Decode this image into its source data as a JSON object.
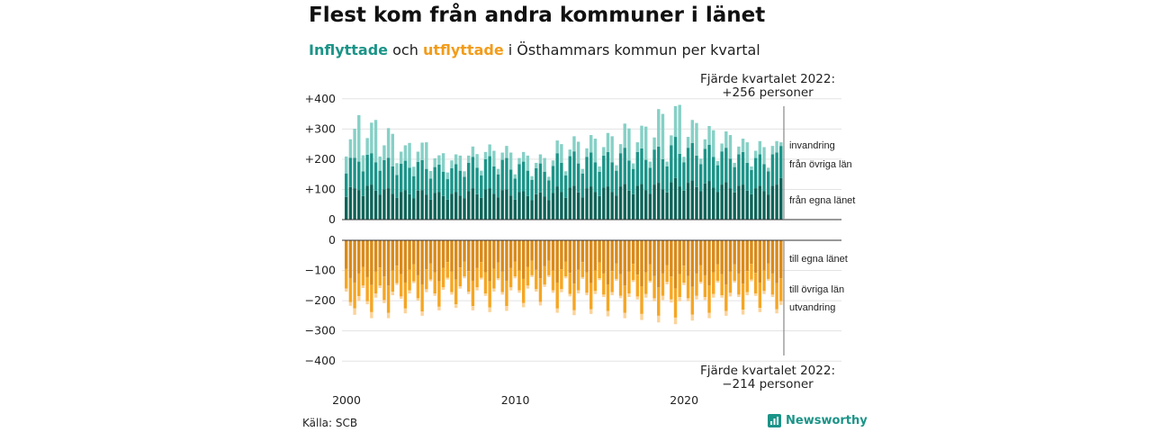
{
  "title": "Flest kom från andra kommuner i länet",
  "subtitle": {
    "in_word": "Inflyttade",
    "and_word": " och ",
    "out_word": "utflyttade",
    "rest": " i Östhammars kommun per kvartal"
  },
  "annotation_top": {
    "line1": "Fjärde kvartalet 2022:",
    "line2": "+256 personer"
  },
  "annotation_bottom": {
    "line1": "Fjärde kvartalet 2022:",
    "line2": "−214 personer"
  },
  "source": "Källa: SCB",
  "brand": "Newsworthy",
  "colors": {
    "in_egna": "#0e6358",
    "in_ovriga": "#1b9488",
    "in_invandring": "#86d0c6",
    "out_egna": "#d98a1a",
    "out_ovriga": "#f6a623",
    "out_utvandring": "#fbd39a"
  },
  "chart_data": [
    {
      "type": "bar",
      "stacked": true,
      "x_start": 2000,
      "x_unit": "kvartal",
      "x_ticks": [
        "2000",
        "2010",
        "2020"
      ],
      "y_ticks": [
        "+400",
        "+300",
        "+200",
        "+100",
        "0"
      ],
      "y_tick_values": [
        400,
        300,
        200,
        100,
        0
      ],
      "ylim": [
        0,
        400
      ],
      "series": [
        {
          "name": "från egna länet",
          "values": [
            75,
            108,
            104,
            98,
            78,
            112,
            116,
            96,
            82,
            100,
            104,
            86,
            72,
            92,
            98,
            84,
            70,
            96,
            98,
            82,
            66,
            88,
            92,
            78,
            66,
            86,
            92,
            80,
            70,
            94,
            104,
            84,
            72,
            100,
            104,
            86,
            74,
            98,
            100,
            80,
            66,
            92,
            94,
            78,
            64,
            84,
            90,
            76,
            64,
            88,
            110,
            92,
            72,
            106,
            112,
            90,
            74,
            104,
            110,
            92,
            78,
            106,
            110,
            92,
            80,
            110,
            118,
            96,
            84,
            112,
            118,
            98,
            86,
            116,
            122,
            100,
            90,
            124,
            138,
            110,
            96,
            122,
            130,
            108,
            94,
            120,
            128,
            106,
            92,
            116,
            124,
            104,
            90,
            112,
            116,
            96,
            84,
            104,
            112,
            94,
            82,
            112,
            116,
            138
          ]
        },
        {
          "name": "från övriga län",
          "values": [
            78,
            97,
            101,
            94,
            82,
            103,
            104,
            94,
            80,
            97,
            101,
            90,
            76,
            93,
            97,
            88,
            74,
            95,
            99,
            86,
            70,
            86,
            90,
            80,
            68,
            84,
            92,
            82,
            72,
            94,
            104,
            88,
            74,
            100,
            106,
            90,
            76,
            100,
            104,
            86,
            70,
            92,
            98,
            84,
            68,
            86,
            96,
            82,
            66,
            90,
            110,
            96,
            74,
            104,
            114,
            96,
            78,
            104,
            112,
            98,
            80,
            106,
            114,
            98,
            82,
            110,
            120,
            100,
            84,
            112,
            118,
            100,
            86,
            116,
            120,
            100,
            86,
            122,
            136,
            108,
            94,
            116,
            124,
            104,
            90,
            114,
            120,
            102,
            88,
            110,
            114,
            98,
            84,
            104,
            108,
            92,
            80,
            100,
            104,
            90,
            78,
            104,
            106,
            106
          ]
        },
        {
          "name": "invandring",
          "values": [
            56,
            61,
            96,
            154,
            53,
            55,
            101,
            140,
            47,
            49,
            98,
            108,
            39,
            40,
            51,
            82,
            31,
            34,
            58,
            88,
            25,
            29,
            31,
            62,
            22,
            26,
            32,
            50,
            18,
            24,
            34,
            45,
            16,
            24,
            39,
            52,
            18,
            24,
            40,
            56,
            14,
            20,
            32,
            50,
            12,
            18,
            30,
            46,
            12,
            18,
            42,
            62,
            14,
            22,
            50,
            72,
            16,
            28,
            58,
            78,
            18,
            28,
            63,
            86,
            18,
            30,
            80,
            106,
            18,
            32,
            75,
            110,
            20,
            40,
            124,
            150,
            16,
            33,
            102,
            162,
            18,
            36,
            76,
            108,
            18,
            32,
            62,
            88,
            14,
            26,
            54,
            78,
            14,
            26,
            44,
            68,
            12,
            24,
            44,
            56,
            12,
            28,
            38,
            12
          ]
        }
      ],
      "end_labels": [
        "invandring",
        "från övriga län",
        "från egna länet"
      ]
    },
    {
      "type": "bar",
      "stacked": true,
      "x_start": 2000,
      "x_unit": "kvartal",
      "y_ticks": [
        "0",
        "−100",
        "−200",
        "−300",
        "−400"
      ],
      "y_tick_values": [
        0,
        -100,
        -200,
        -300,
        -400
      ],
      "ylim": [
        -400,
        0
      ],
      "series": [
        {
          "name": "till egna länet",
          "values": [
            -95,
            -125,
            -140,
            -110,
            -88,
            -122,
            -148,
            -104,
            -90,
            -120,
            -150,
            -100,
            -84,
            -112,
            -140,
            -98,
            -80,
            -116,
            -146,
            -96,
            -76,
            -106,
            -136,
            -92,
            -72,
            -104,
            -130,
            -90,
            -70,
            -102,
            -134,
            -92,
            -72,
            -106,
            -136,
            -94,
            -74,
            -104,
            -134,
            -92,
            -70,
            -100,
            -128,
            -88,
            -68,
            -98,
            -126,
            -86,
            -68,
            -100,
            -140,
            -96,
            -70,
            -108,
            -144,
            -98,
            -72,
            -106,
            -142,
            -100,
            -74,
            -110,
            -146,
            -102,
            -76,
            -112,
            -150,
            -104,
            -78,
            -114,
            -152,
            -106,
            -80,
            -118,
            -156,
            -110,
            -82,
            -120,
            -160,
            -112,
            -84,
            -118,
            -154,
            -110,
            -82,
            -116,
            -150,
            -106,
            -80,
            -112,
            -146,
            -104,
            -80,
            -110,
            -144,
            -102,
            -78,
            -108,
            -140,
            -100,
            -76,
            -110,
            -142,
            -126
          ]
        },
        {
          "name": "till övriga län",
          "values": [
            -65,
            -80,
            -85,
            -75,
            -62,
            -80,
            -90,
            -72,
            -60,
            -78,
            -90,
            -70,
            -58,
            -74,
            -86,
            -68,
            -56,
            -76,
            -90,
            -66,
            -54,
            -70,
            -84,
            -64,
            -52,
            -68,
            -82,
            -62,
            -50,
            -68,
            -84,
            -64,
            -52,
            -70,
            -86,
            -66,
            -52,
            -68,
            -84,
            -64,
            -50,
            -66,
            -80,
            -62,
            -48,
            -64,
            -78,
            -60,
            -48,
            -66,
            -86,
            -66,
            -50,
            -70,
            -88,
            -68,
            -50,
            -68,
            -86,
            -68,
            -52,
            -70,
            -88,
            -70,
            -52,
            -72,
            -90,
            -72,
            -54,
            -72,
            -92,
            -72,
            -54,
            -74,
            -94,
            -74,
            -56,
            -76,
            -96,
            -76,
            -56,
            -74,
            -92,
            -74,
            -56,
            -72,
            -90,
            -72,
            -54,
            -70,
            -88,
            -70,
            -54,
            -70,
            -86,
            -70,
            -52,
            -68,
            -84,
            -68,
            -52,
            -70,
            -86,
            -76
          ]
        },
        {
          "name": "utvandring",
          "values": [
            -10,
            -12,
            -22,
            -16,
            -8,
            -10,
            -20,
            -14,
            -8,
            -10,
            -18,
            -12,
            -6,
            -8,
            -16,
            -10,
            -6,
            -8,
            -14,
            -10,
            -6,
            -8,
            -12,
            -8,
            -6,
            -8,
            -12,
            -8,
            -6,
            -8,
            -14,
            -10,
            -6,
            -8,
            -16,
            -10,
            -6,
            -8,
            -16,
            -10,
            -6,
            -8,
            -14,
            -10,
            -6,
            -8,
            -12,
            -8,
            -6,
            -8,
            -14,
            -10,
            -6,
            -8,
            -16,
            -10,
            -6,
            -8,
            -16,
            -10,
            -6,
            -8,
            -18,
            -10,
            -6,
            -8,
            -18,
            -12,
            -6,
            -10,
            -20,
            -12,
            -6,
            -10,
            -22,
            -14,
            -8,
            -10,
            -22,
            -14,
            -8,
            -10,
            -20,
            -12,
            -6,
            -10,
            -18,
            -12,
            -6,
            -8,
            -16,
            -12,
            -6,
            -8,
            -16,
            -10,
            -6,
            -8,
            -14,
            -10,
            -6,
            -8,
            -14,
            -12
          ]
        }
      ],
      "end_labels": [
        "till egna länet",
        "till övriga län",
        "utvandring"
      ]
    }
  ]
}
